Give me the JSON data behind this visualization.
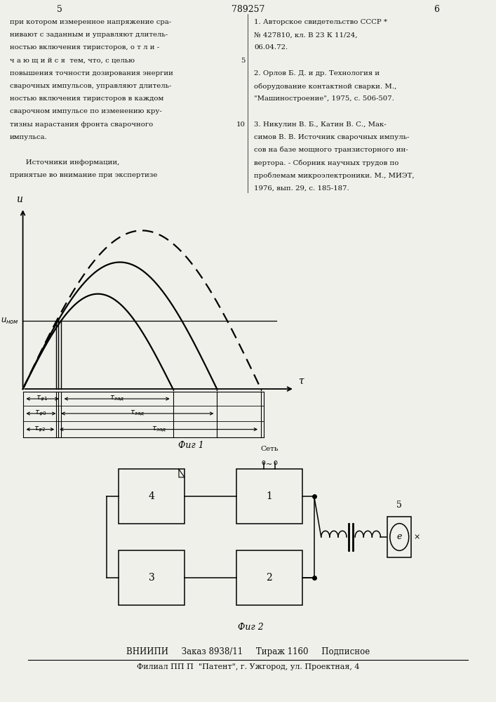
{
  "page_num_left": "5",
  "page_num_center": "789257",
  "page_num_right": "6",
  "left_text": [
    "при котором измеренное напряжение сра-",
    "нивают с заданным и управляют длитель-",
    "ностью включения тиристоров, о т л и -",
    "ч а ю щ и й с я  тем, что, с целью",
    "повышения точности дозирования энергии",
    "сварочных импульсов, управляют длитель-",
    "ностью включения тиристоров в каждом",
    "сварочном импульсе по изменению кру-",
    "тизны нарастания фронта сварочного",
    "импульса.",
    "",
    "       Источники информации,",
    "принятые во внимание при экспертизе"
  ],
  "right_text": [
    "1. Авторское свидетельство СССР *",
    "№ 427810, кл. В 23 К 11/24,",
    "06.04.72.",
    "",
    "2. Орлов Б. Д. и др. Технология и",
    "оборудование контактной сварки. М.,",
    "\"Машиностроение\", 1975, с. 506-507.",
    "",
    "3. Никулин В. Б., Катин В. С., Мак-",
    "симов В. В. Источник сварочных импуль-",
    "сов на базе мощного транзисторного ин-",
    "вертора. - Сборник научных трудов по",
    "проблемам микроэлектроники. М., МИЭТ,",
    "1976, вып. 29, с. 185-187."
  ],
  "fig1_caption": "Фиг 1",
  "fig2_caption": "Фиг 2",
  "footer_line1": "ВНИИПИ     Заказ 8938/11     Тираж 1160     Подписное",
  "footer_line2": "Филиал ПП П  \"Патент\", г. Ужгород, ул. Проектная, 4",
  "bg": "#f0f0eb"
}
